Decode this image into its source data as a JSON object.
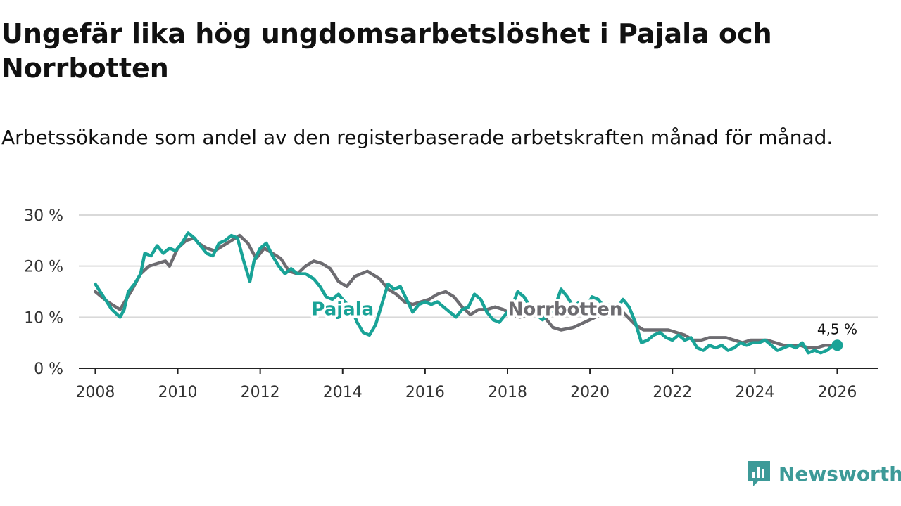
{
  "title": "Ungefär lika hög ungdomsarbetslöshet i Pajala och Norrbotten",
  "subtitle": "Arbetssökande som andel av den registerbaserade arbetskraften månad för månad.",
  "brand": {
    "name": "Newsworthy",
    "icon": "newsworthy-logo-icon"
  },
  "colors": {
    "pajala": "#19a397",
    "norrbotten": "#6d6c71",
    "grid": "#d9d9d9",
    "axis": "#222222",
    "brand": "#3d9a98"
  },
  "chart_data": {
    "type": "line",
    "title": "Ungefär lika hög ungdomsarbetslöshet i Pajala och Norrbotten",
    "subtitle": "Arbetssökande som andel av den registerbaserade arbetskraften månad för månad.",
    "xlabel": "",
    "ylabel": "",
    "xlim": [
      2007.6,
      2027.0
    ],
    "ylim": [
      0,
      30
    ],
    "grid": true,
    "x_ticks": [
      2008,
      2010,
      2012,
      2014,
      2016,
      2018,
      2020,
      2022,
      2024,
      2026
    ],
    "x_tick_labels": [
      "2008",
      "2010",
      "2012",
      "2014",
      "2016",
      "2018",
      "2020",
      "2022",
      "2024",
      "2026"
    ],
    "y_ticks": [
      0,
      10,
      20,
      30
    ],
    "y_tick_labels": [
      "0 %",
      "10 %",
      "20 %",
      "30 %"
    ],
    "series": [
      {
        "name": "Norrbotten",
        "label_text": "Norrbotten",
        "label_at": [
          2019.4,
          10
        ],
        "points": [
          [
            2008.0,
            15.0
          ],
          [
            2008.3,
            13.0
          ],
          [
            2008.6,
            11.5
          ],
          [
            2008.9,
            15.5
          ],
          [
            2009.1,
            18.5
          ],
          [
            2009.3,
            20.0
          ],
          [
            2009.5,
            20.5
          ],
          [
            2009.7,
            21.0
          ],
          [
            2009.8,
            20.0
          ],
          [
            2010.0,
            23.5
          ],
          [
            2010.2,
            25.0
          ],
          [
            2010.4,
            25.5
          ],
          [
            2010.5,
            24.5
          ],
          [
            2010.7,
            23.5
          ],
          [
            2010.9,
            23.0
          ],
          [
            2011.1,
            24.0
          ],
          [
            2011.3,
            25.0
          ],
          [
            2011.5,
            26.0
          ],
          [
            2011.7,
            24.5
          ],
          [
            2011.9,
            21.5
          ],
          [
            2012.1,
            23.5
          ],
          [
            2012.3,
            22.5
          ],
          [
            2012.5,
            21.5
          ],
          [
            2012.7,
            19.0
          ],
          [
            2012.9,
            18.5
          ],
          [
            2013.1,
            20.0
          ],
          [
            2013.3,
            21.0
          ],
          [
            2013.5,
            20.5
          ],
          [
            2013.7,
            19.5
          ],
          [
            2013.9,
            17.0
          ],
          [
            2014.1,
            16.0
          ],
          [
            2014.3,
            18.0
          ],
          [
            2014.6,
            19.0
          ],
          [
            2014.9,
            17.5
          ],
          [
            2015.1,
            15.5
          ],
          [
            2015.3,
            14.5
          ],
          [
            2015.5,
            13.0
          ],
          [
            2015.7,
            12.5
          ],
          [
            2015.9,
            13.0
          ],
          [
            2016.1,
            13.5
          ],
          [
            2016.3,
            14.5
          ],
          [
            2016.5,
            15.0
          ],
          [
            2016.7,
            14.0
          ],
          [
            2016.9,
            12.0
          ],
          [
            2017.1,
            10.5
          ],
          [
            2017.3,
            11.5
          ],
          [
            2017.5,
            11.5
          ],
          [
            2017.7,
            12.0
          ],
          [
            2017.9,
            11.5
          ],
          [
            2018.1,
            10.5
          ],
          [
            2018.3,
            10.0
          ],
          [
            2018.5,
            10.5
          ],
          [
            2018.7,
            10.5
          ],
          [
            2018.9,
            10.0
          ],
          [
            2019.1,
            8.0
          ],
          [
            2019.3,
            7.5
          ],
          [
            2019.6,
            8.0
          ],
          [
            2020.0,
            9.5
          ],
          [
            2020.4,
            11.0
          ],
          [
            2020.8,
            11.0
          ],
          [
            2021.1,
            8.5
          ],
          [
            2021.3,
            7.5
          ],
          [
            2021.5,
            7.5
          ],
          [
            2021.7,
            7.5
          ],
          [
            2021.9,
            7.5
          ],
          [
            2022.1,
            7.0
          ],
          [
            2022.3,
            6.5
          ],
          [
            2022.5,
            5.5
          ],
          [
            2022.7,
            5.5
          ],
          [
            2022.9,
            6.0
          ],
          [
            2023.1,
            6.0
          ],
          [
            2023.3,
            6.0
          ],
          [
            2023.5,
            5.5
          ],
          [
            2023.7,
            5.0
          ],
          [
            2023.9,
            5.5
          ],
          [
            2024.1,
            5.5
          ],
          [
            2024.3,
            5.5
          ],
          [
            2024.5,
            5.0
          ],
          [
            2024.7,
            4.5
          ],
          [
            2024.9,
            4.5
          ],
          [
            2025.1,
            4.5
          ],
          [
            2025.3,
            4.0
          ],
          [
            2025.5,
            4.0
          ],
          [
            2025.7,
            4.5
          ],
          [
            2025.9,
            4.5
          ],
          [
            2026.0,
            4.5
          ]
        ]
      },
      {
        "name": "Pajala",
        "label_text": "Pajala",
        "label_at": [
          2014.0,
          10
        ],
        "end_label": "4,5 %",
        "points": [
          [
            2008.0,
            16.5
          ],
          [
            2008.2,
            14.0
          ],
          [
            2008.4,
            11.5
          ],
          [
            2008.6,
            10.0
          ],
          [
            2008.7,
            11.5
          ],
          [
            2008.8,
            15.0
          ],
          [
            2008.95,
            16.5
          ],
          [
            2009.1,
            18.5
          ],
          [
            2009.2,
            22.5
          ],
          [
            2009.35,
            22.0
          ],
          [
            2009.5,
            24.0
          ],
          [
            2009.65,
            22.5
          ],
          [
            2009.8,
            23.5
          ],
          [
            2009.95,
            23.0
          ],
          [
            2010.1,
            24.5
          ],
          [
            2010.25,
            26.5
          ],
          [
            2010.4,
            25.5
          ],
          [
            2010.55,
            24.0
          ],
          [
            2010.7,
            22.5
          ],
          [
            2010.85,
            22.0
          ],
          [
            2011.0,
            24.5
          ],
          [
            2011.15,
            25.0
          ],
          [
            2011.3,
            26.0
          ],
          [
            2011.45,
            25.5
          ],
          [
            2011.6,
            21.0
          ],
          [
            2011.75,
            17.0
          ],
          [
            2011.85,
            21.0
          ],
          [
            2012.0,
            23.5
          ],
          [
            2012.15,
            24.5
          ],
          [
            2012.3,
            22.0
          ],
          [
            2012.45,
            20.0
          ],
          [
            2012.6,
            18.5
          ],
          [
            2012.75,
            19.5
          ],
          [
            2012.9,
            18.5
          ],
          [
            2013.1,
            18.5
          ],
          [
            2013.3,
            17.5
          ],
          [
            2013.45,
            16.0
          ],
          [
            2013.6,
            14.0
          ],
          [
            2013.75,
            13.5
          ],
          [
            2013.9,
            14.5
          ],
          [
            2014.05,
            13.0
          ],
          [
            2014.2,
            12.0
          ],
          [
            2014.35,
            9.0
          ],
          [
            2014.5,
            7.0
          ],
          [
            2014.65,
            6.5
          ],
          [
            2014.8,
            8.5
          ],
          [
            2014.95,
            12.5
          ],
          [
            2015.1,
            16.5
          ],
          [
            2015.25,
            15.5
          ],
          [
            2015.4,
            16.0
          ],
          [
            2015.55,
            13.5
          ],
          [
            2015.7,
            11.0
          ],
          [
            2015.85,
            12.5
          ],
          [
            2016.0,
            13.0
          ],
          [
            2016.15,
            12.5
          ],
          [
            2016.3,
            13.0
          ],
          [
            2016.45,
            12.0
          ],
          [
            2016.6,
            11.0
          ],
          [
            2016.75,
            10.0
          ],
          [
            2016.9,
            11.5
          ],
          [
            2017.05,
            12.0
          ],
          [
            2017.2,
            14.5
          ],
          [
            2017.35,
            13.5
          ],
          [
            2017.5,
            11.0
          ],
          [
            2017.65,
            9.5
          ],
          [
            2017.8,
            9.0
          ],
          [
            2017.95,
            10.5
          ],
          [
            2018.1,
            12.0
          ],
          [
            2018.25,
            15.0
          ],
          [
            2018.4,
            14.0
          ],
          [
            2018.55,
            12.0
          ],
          [
            2018.7,
            10.5
          ],
          [
            2018.85,
            9.5
          ],
          [
            2019.0,
            10.5
          ],
          [
            2019.15,
            12.0
          ],
          [
            2019.3,
            15.5
          ],
          [
            2019.45,
            14.0
          ],
          [
            2019.6,
            12.0
          ],
          [
            2019.75,
            13.0
          ],
          [
            2019.9,
            11.5
          ],
          [
            2020.05,
            14.0
          ],
          [
            2020.2,
            13.5
          ],
          [
            2020.35,
            12.0
          ],
          [
            2020.5,
            12.5
          ],
          [
            2020.65,
            11.5
          ],
          [
            2020.8,
            13.5
          ],
          [
            2020.95,
            12.0
          ],
          [
            2021.1,
            9.0
          ],
          [
            2021.25,
            5.0
          ],
          [
            2021.4,
            5.5
          ],
          [
            2021.55,
            6.5
          ],
          [
            2021.7,
            7.0
          ],
          [
            2021.85,
            6.0
          ],
          [
            2022.0,
            5.5
          ],
          [
            2022.15,
            6.5
          ],
          [
            2022.3,
            5.5
          ],
          [
            2022.45,
            6.0
          ],
          [
            2022.6,
            4.0
          ],
          [
            2022.75,
            3.5
          ],
          [
            2022.9,
            4.5
          ],
          [
            2023.05,
            4.0
          ],
          [
            2023.2,
            4.5
          ],
          [
            2023.35,
            3.5
          ],
          [
            2023.5,
            4.0
          ],
          [
            2023.65,
            5.0
          ],
          [
            2023.8,
            4.5
          ],
          [
            2023.95,
            5.0
          ],
          [
            2024.1,
            5.0
          ],
          [
            2024.25,
            5.5
          ],
          [
            2024.4,
            4.5
          ],
          [
            2024.55,
            3.5
          ],
          [
            2024.7,
            4.0
          ],
          [
            2024.85,
            4.5
          ],
          [
            2025.0,
            4.0
          ],
          [
            2025.15,
            5.0
          ],
          [
            2025.3,
            3.0
          ],
          [
            2025.45,
            3.5
          ],
          [
            2025.6,
            3.0
          ],
          [
            2025.75,
            3.5
          ],
          [
            2025.9,
            4.5
          ],
          [
            2026.0,
            4.5
          ]
        ]
      }
    ]
  }
}
